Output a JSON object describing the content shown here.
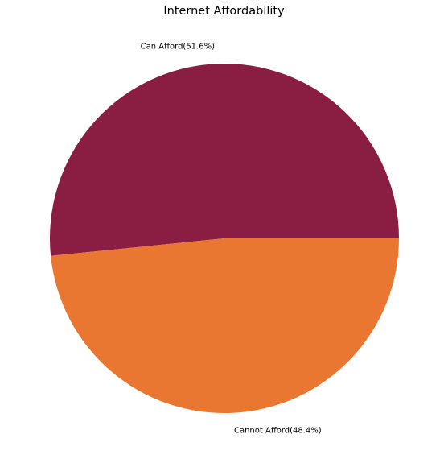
{
  "chart_data": {
    "type": "pie",
    "title": "Internet Affordability",
    "slices": [
      {
        "label": "Can Afford(51.6%)",
        "category": "Can Afford",
        "percent": 51.6,
        "color": "#891e42"
      },
      {
        "label": "Cannot Afford(48.4%)",
        "category": "Cannot Afford",
        "percent": 48.4,
        "color": "#e97732"
      }
    ],
    "start_angle_deg": 0,
    "direction": "counterclockwise"
  }
}
